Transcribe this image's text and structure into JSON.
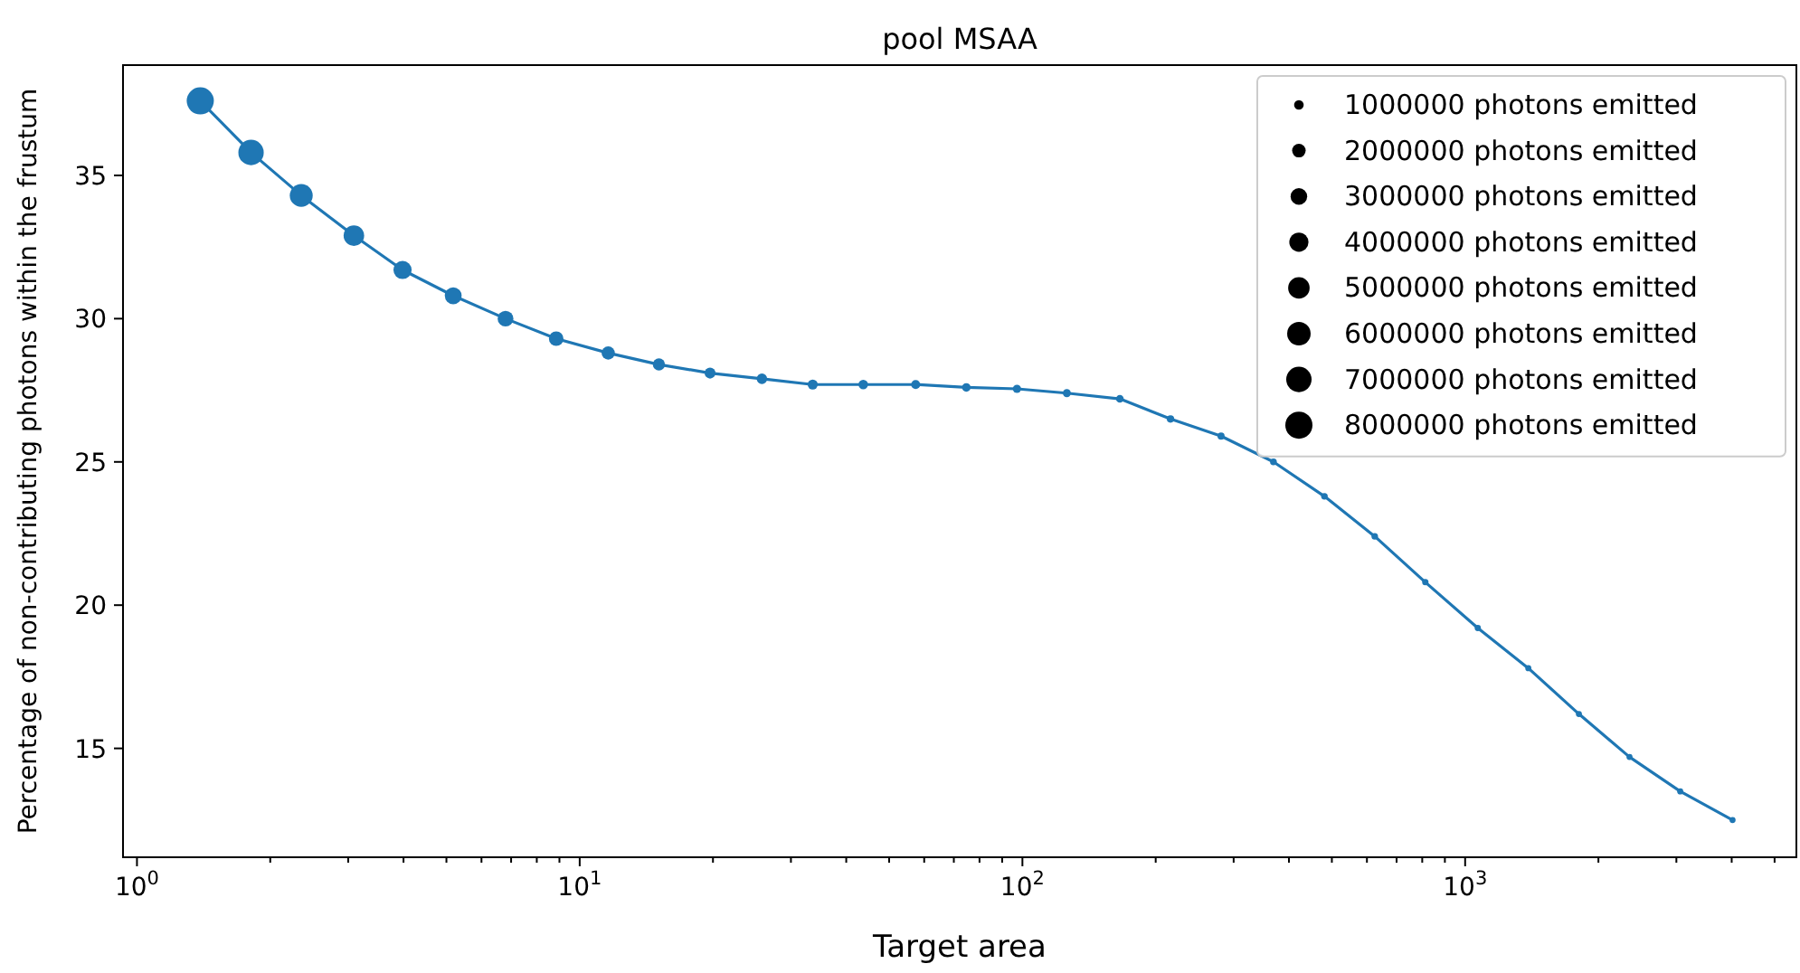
{
  "chart_data": {
    "type": "bubble",
    "title": "pool MSAA",
    "xlabel": "Target area",
    "ylabel": "Percentage of non-contributing photons within the frustum",
    "log": "x",
    "xlim": [
      0.93,
      5600
    ],
    "ylim": [
      11.2,
      38.85
    ],
    "xticks": [
      {
        "value": 1,
        "label": "10$^{0}$"
      },
      {
        "value": 2,
        "label": null
      },
      {
        "value": 3,
        "label": null
      },
      {
        "value": 4,
        "label": null
      },
      {
        "value": 5,
        "label": null
      },
      {
        "value": 6,
        "label": null
      },
      {
        "value": 7,
        "label": null
      },
      {
        "value": 8,
        "label": null
      },
      {
        "value": 9,
        "label": null
      },
      {
        "value": 10,
        "label": "10$^{1}$"
      },
      {
        "value": 20,
        "label": null
      },
      {
        "value": 30,
        "label": null
      },
      {
        "value": 40,
        "label": null
      },
      {
        "value": 50,
        "label": null
      },
      {
        "value": 60,
        "label": null
      },
      {
        "value": 70,
        "label": null
      },
      {
        "value": 80,
        "label": null
      },
      {
        "value": 90,
        "label": null
      },
      {
        "value": 100,
        "label": "10$^{2}$"
      },
      {
        "value": 200,
        "label": null
      },
      {
        "value": 300,
        "label": null
      },
      {
        "value": 400,
        "label": null
      },
      {
        "value": 500,
        "label": null
      },
      {
        "value": 600,
        "label": null
      },
      {
        "value": 700,
        "label": null
      },
      {
        "value": 800,
        "label": null
      },
      {
        "value": 900,
        "label": null
      },
      {
        "value": 1000,
        "label": "10$^{3}$"
      },
      {
        "value": 2000,
        "label": null
      },
      {
        "value": 3000,
        "label": null
      },
      {
        "value": 4000,
        "label": null
      },
      {
        "value": 5000,
        "label": null
      }
    ],
    "yticks": [
      15,
      20,
      25,
      30,
      35
    ],
    "grid": false,
    "size_legend": [
      {
        "value": 1000000,
        "label": "1000000 photons emitted"
      },
      {
        "value": 2000000,
        "label": "2000000 photons emitted"
      },
      {
        "value": 3000000,
        "label": "3000000 photons emitted"
      },
      {
        "value": 4000000,
        "label": "4000000 photons emitted"
      },
      {
        "value": 5000000,
        "label": "5000000 photons emitted"
      },
      {
        "value": 6000000,
        "label": "6000000 photons emitted"
      },
      {
        "value": 7000000,
        "label": "7000000 photons emitted"
      },
      {
        "value": 8000000,
        "label": "8000000 photons emitted"
      }
    ],
    "series": [
      {
        "type": "line",
        "marker": "none",
        "color": "#1f77b4",
        "line_style": "solid",
        "x": [
          1.39,
          1.81,
          2.35,
          3.09,
          3.98,
          5.18,
          6.8,
          8.85,
          11.6,
          15.1,
          19.7,
          25.8,
          33.6,
          43.7,
          57.4,
          74.7,
          97.2,
          126,
          166,
          216,
          281,
          369,
          481,
          625,
          813,
          1068,
          1389,
          1807,
          2351,
          3061,
          4018
        ],
        "values": [
          37.6,
          35.8,
          34.3,
          32.9,
          31.7,
          30.8,
          30.0,
          29.3,
          28.8,
          28.4,
          28.1,
          27.9,
          27.7,
          27.7,
          27.7,
          27.6,
          27.55,
          27.4,
          27.2,
          26.5,
          25.9,
          25.0,
          23.8,
          22.4,
          20.8,
          19.2,
          17.8,
          16.2,
          14.7,
          13.5,
          12.5
        ]
      },
      {
        "color": "#1f77b4",
        "x": [
          1.39,
          1.81,
          2.35,
          3.09,
          3.98,
          5.18,
          6.8,
          8.85,
          11.6,
          15.1,
          19.7,
          25.8,
          33.6,
          43.7,
          57.4,
          74.7,
          97.2,
          126,
          166,
          216,
          281,
          369,
          481,
          625,
          813,
          1068,
          1389,
          1807,
          2351,
          3061,
          4018
        ],
        "values": [
          37.6,
          35.8,
          34.3,
          32.9,
          31.7,
          30.8,
          30.0,
          29.3,
          28.8,
          28.4,
          28.1,
          27.9,
          27.7,
          27.7,
          27.7,
          27.6,
          27.55,
          27.4,
          27.2,
          26.5,
          25.9,
          25.0,
          23.8,
          22.4,
          20.8,
          19.2,
          17.8,
          16.2,
          14.7,
          13.5,
          12.5
        ],
        "sizes": [
          8000000,
          7000000,
          5700000,
          4600000,
          3600000,
          3100000,
          2700000,
          2300000,
          1900000,
          1600000,
          1300000,
          1200000,
          1100000,
          1000000,
          900000,
          800000,
          750000,
          700000,
          650000,
          600000,
          550000,
          500000,
          480000,
          460000,
          440000,
          420000,
          400000,
          400000,
          400000,
          400000,
          400000
        ]
      }
    ]
  }
}
